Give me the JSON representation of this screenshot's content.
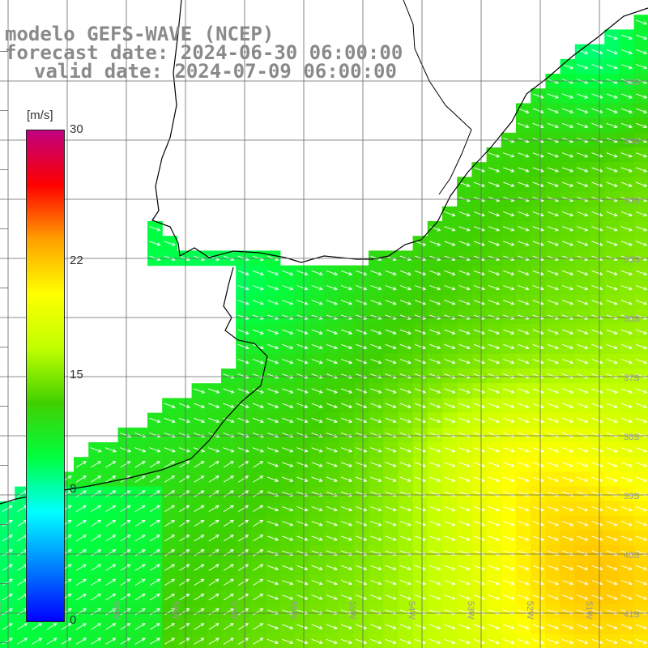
{
  "title": {
    "line1": "modelo GEFS-WAVE (NCEP)",
    "line2": "forecast date: 2024-06-30 06:00:00",
    "line3": "valid date: 2024-07-09 06:00:00"
  },
  "colorbar": {
    "unit": "[m/s]",
    "ticks": [
      {
        "label": "30",
        "value": 30
      },
      {
        "label": "22",
        "value": 22
      },
      {
        "label": "15",
        "value": 15
      },
      {
        "label": "8",
        "value": 8
      },
      {
        "label": "0",
        "value": 0
      }
    ],
    "range": [
      0,
      30
    ],
    "colors": [
      "#0000ff",
      "#0080ff",
      "#00ffff",
      "#00ff40",
      "#40d000",
      "#c0ff00",
      "#ffff00",
      "#ffa000",
      "#ff0000",
      "#c00080"
    ]
  },
  "map": {
    "lon_labels": [
      "61W",
      "60W",
      "59W",
      "58W",
      "57W",
      "56W",
      "55W",
      "54W",
      "53W",
      "52W",
      "51W"
    ],
    "lat_labels": [
      "32S",
      "33S",
      "34S",
      "35S",
      "36S",
      "37S",
      "38S",
      "39S",
      "40S",
      "41S"
    ],
    "lon_range": [
      -62,
      -51
    ],
    "lat_range": [
      -31.4,
      -41.8
    ],
    "colors": {
      "land": "#ffffff",
      "coast": "#000000",
      "grid": "#666666",
      "arrows": "#ffffff"
    }
  }
}
